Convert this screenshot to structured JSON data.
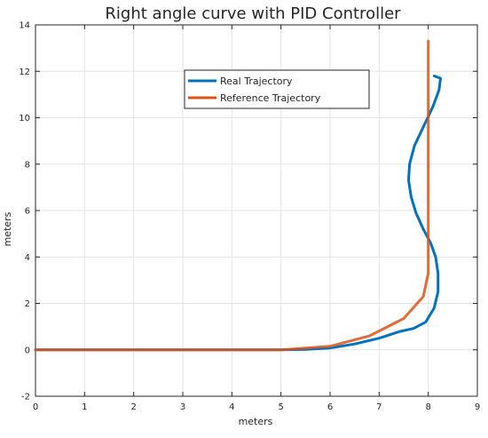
{
  "chart_data": {
    "type": "line",
    "title": "Right angle curve with PID Controller",
    "xlabel": "meters",
    "ylabel": "meters",
    "xlim": [
      0,
      9
    ],
    "ylim": [
      -2,
      14
    ],
    "xticks": [
      0,
      1,
      2,
      3,
      4,
      5,
      6,
      7,
      8,
      9
    ],
    "yticks": [
      -2,
      0,
      2,
      4,
      6,
      8,
      10,
      12,
      14
    ],
    "grid": true,
    "legend_position": "top-center",
    "series": [
      {
        "name": "Real Trajectory",
        "color": "#0072BD",
        "x": [
          0,
          5.0,
          5.5,
          6.0,
          6.5,
          7.0,
          7.4,
          7.7,
          7.95,
          8.12,
          8.2,
          8.2,
          8.15,
          8.05,
          7.9,
          7.75,
          7.65,
          7.6,
          7.62,
          7.72,
          7.9,
          8.1,
          8.22,
          8.25,
          8.12
        ],
        "y": [
          0,
          0,
          0.02,
          0.08,
          0.25,
          0.5,
          0.78,
          0.92,
          1.2,
          1.8,
          2.5,
          3.3,
          4.0,
          4.6,
          5.2,
          5.9,
          6.6,
          7.3,
          8.0,
          8.8,
          9.6,
          10.5,
          11.2,
          11.7,
          11.8
        ]
      },
      {
        "name": "Reference Trajectory",
        "color": "#D95319",
        "x": [
          0,
          5.0,
          6.0,
          6.8,
          7.5,
          7.9,
          8.0,
          8.0,
          8.0,
          8.0
        ],
        "y": [
          0,
          0,
          0.15,
          0.6,
          1.35,
          2.3,
          3.3,
          5.5,
          10.0,
          13.3
        ]
      }
    ]
  }
}
